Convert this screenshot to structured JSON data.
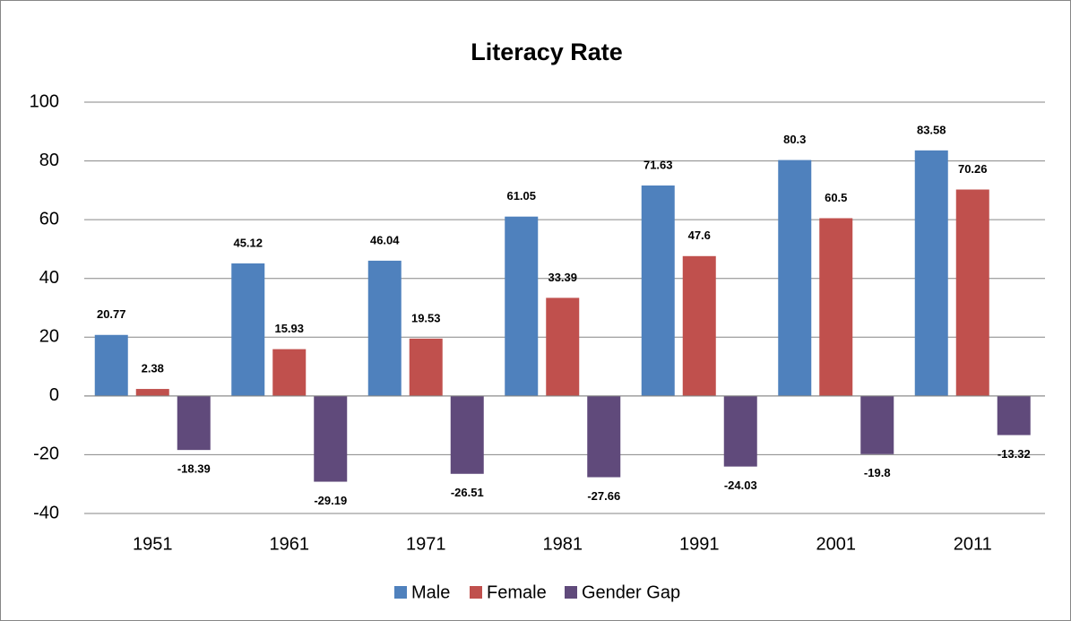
{
  "chart_data": {
    "type": "bar",
    "title": "Literacy Rate",
    "categories": [
      "1951",
      "1961",
      "1971",
      "1981",
      "1991",
      "2001",
      "2011"
    ],
    "series": [
      {
        "name": "Male",
        "color": "#4f81bd",
        "values": [
          20.77,
          45.12,
          46.04,
          61.05,
          71.63,
          80.3,
          83.58
        ]
      },
      {
        "name": "Female",
        "color": "#c0504d",
        "values": [
          2.38,
          15.93,
          19.53,
          33.39,
          47.6,
          60.5,
          70.26
        ]
      },
      {
        "name": "Gender Gap",
        "color": "#604a7b",
        "values": [
          -18.39,
          -29.19,
          -26.51,
          -27.66,
          -24.03,
          -19.8,
          -13.32
        ]
      }
    ],
    "ylim": [
      -40,
      100
    ],
    "yticks": [
      -40,
      -20,
      0,
      20,
      40,
      60,
      80,
      100
    ],
    "grid": true,
    "legend": "bottom"
  }
}
